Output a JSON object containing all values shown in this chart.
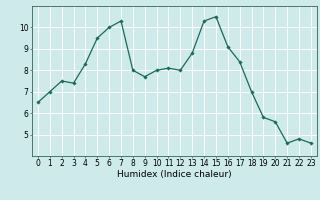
{
  "x": [
    0,
    1,
    2,
    3,
    4,
    5,
    6,
    7,
    8,
    9,
    10,
    11,
    12,
    13,
    14,
    15,
    16,
    17,
    18,
    19,
    20,
    21,
    22,
    23
  ],
  "y": [
    6.5,
    7.0,
    7.5,
    7.4,
    8.3,
    9.5,
    10.0,
    10.3,
    8.0,
    7.7,
    8.0,
    8.1,
    8.0,
    8.8,
    10.3,
    10.5,
    9.1,
    8.4,
    7.0,
    5.8,
    5.6,
    4.6,
    4.8,
    4.6
  ],
  "line_color": "#1a6b5a",
  "marker": "D",
  "marker_size": 1.8,
  "linewidth": 0.9,
  "xlabel": "Humidex (Indice chaleur)",
  "xlim": [
    -0.5,
    23.5
  ],
  "ylim": [
    4.0,
    11.0
  ],
  "yticks": [
    5,
    6,
    7,
    8,
    9,
    10
  ],
  "xticks": [
    0,
    1,
    2,
    3,
    4,
    5,
    6,
    7,
    8,
    9,
    10,
    11,
    12,
    13,
    14,
    15,
    16,
    17,
    18,
    19,
    20,
    21,
    22,
    23
  ],
  "background_color": "#ceeaea",
  "grid_color": "#ffffff",
  "tick_fontsize": 5.5,
  "xlabel_fontsize": 6.5
}
